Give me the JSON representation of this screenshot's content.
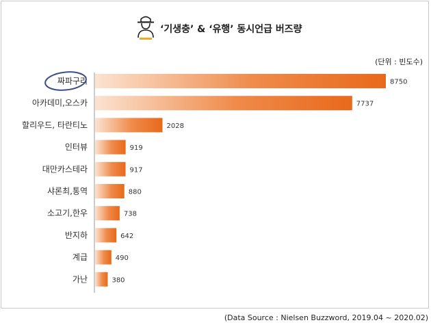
{
  "title": "‘기생충’ & ‘유행’ 동시언급 버즈량",
  "unit_note": "(단위 : 빈도수)",
  "source_note": "(Data Source : Nielsen Buzzword, 2019.04 ~ 2020.02)",
  "colors": {
    "bar": "#e8691b",
    "bar_light": "#fbe3d1",
    "axis": "#999999",
    "circle": "#3a4f8a"
  },
  "chart_data": {
    "type": "bar",
    "orientation": "horizontal",
    "categories": [
      "짜파구리",
      "아카데미,오스카",
      "할리우드, 타란티노",
      "인터뷰",
      "대만카스테라",
      "샤론최,통역",
      "소고기,한우",
      "반지하",
      "계급",
      "가난"
    ],
    "values": [
      8750,
      7737,
      2028,
      919,
      917,
      880,
      738,
      642,
      490,
      380
    ],
    "xlim": [
      0,
      8750
    ],
    "highlighted_category": "짜파구리",
    "grid": false,
    "legend": "none"
  }
}
